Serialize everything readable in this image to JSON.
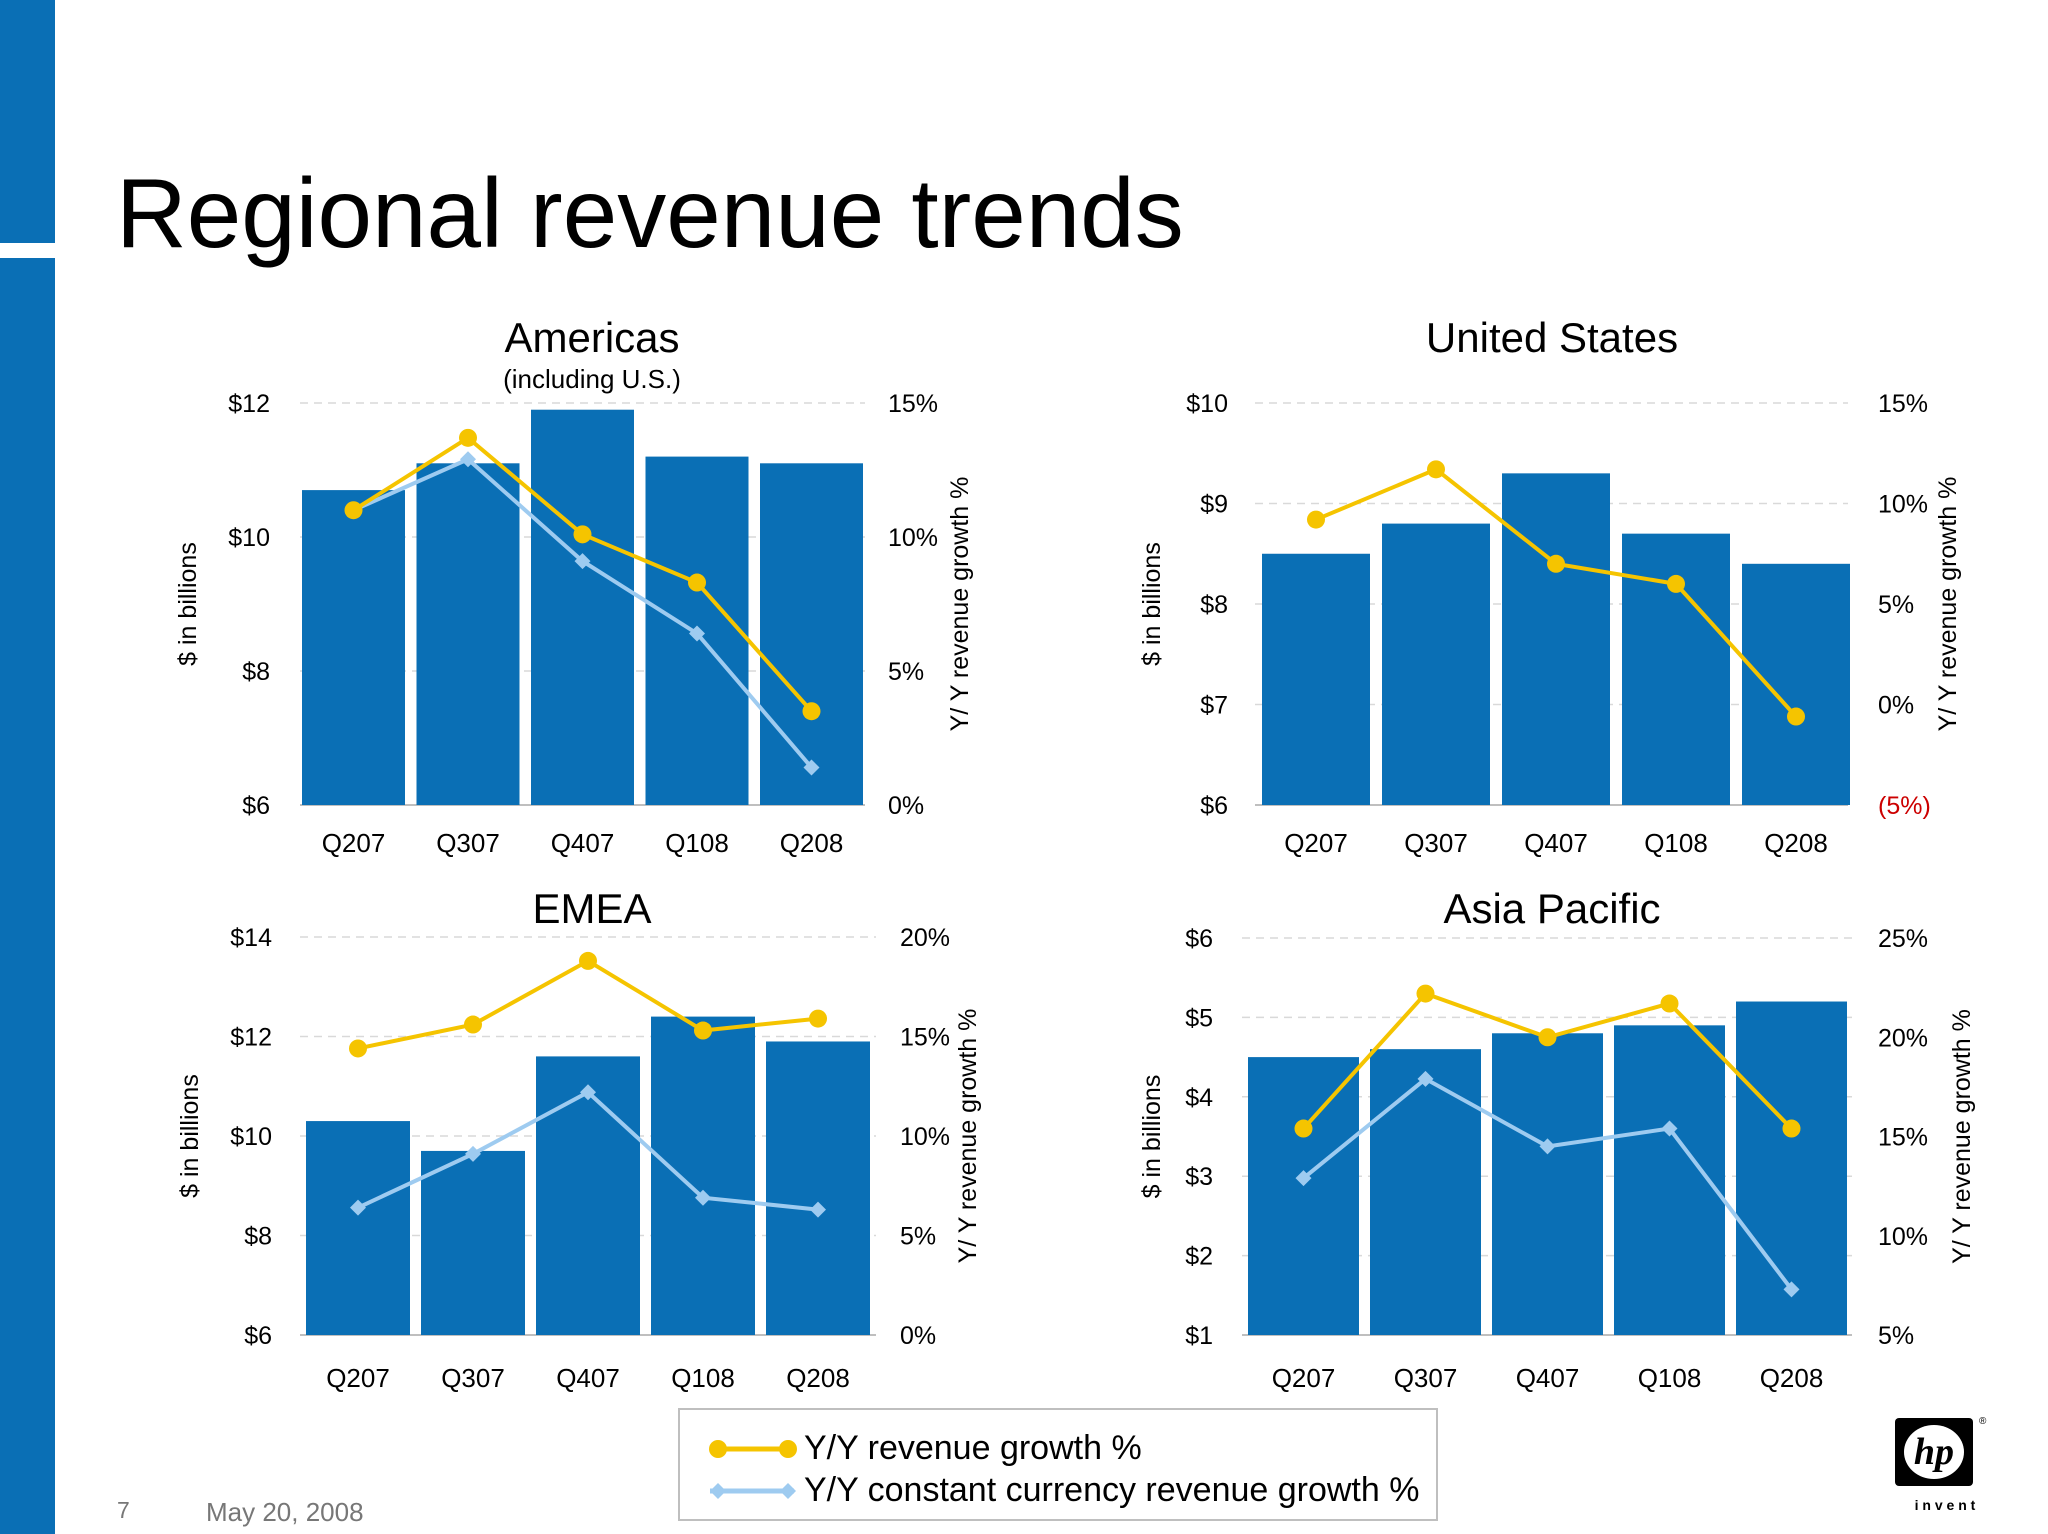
{
  "page": {
    "title": "Regional revenue trends",
    "page_number": "7",
    "date": "May 20, 2008"
  },
  "logo": {
    "mark_text": "hp",
    "tagline": "i n v e n t"
  },
  "legend": {
    "items": [
      {
        "label": "Y/Y revenue growth %",
        "color": "#f5c400",
        "marker": "circle"
      },
      {
        "label": "Y/Y constant currency revenue growth %",
        "color": "#9ecbf0",
        "marker": "diamond"
      }
    ]
  },
  "colors": {
    "bar": "#0a6fb5",
    "growth": "#f5c400",
    "constant_currency": "#9ecbf0",
    "accent": "#0a6fb5",
    "negative_label": "#cc0000"
  },
  "chart_data": [
    {
      "type": "bar",
      "title": "Americas",
      "subtitle": "(including U.S.)",
      "categories": [
        "Q207",
        "Q307",
        "Q407",
        "Q108",
        "Q208"
      ],
      "ylabel": "$ in billions",
      "y2label": "Y/ Y revenue growth %",
      "ylim": [
        6,
        12
      ],
      "y_ticks": [
        6,
        8,
        10,
        12
      ],
      "y_tick_labels": [
        "$6",
        "$8",
        "$10",
        "$12"
      ],
      "y2lim": [
        0,
        15
      ],
      "y2_ticks": [
        0,
        5,
        10,
        15
      ],
      "y2_tick_labels": [
        "0%",
        "5%",
        "10%",
        "15%"
      ],
      "bars": [
        10.7,
        11.1,
        11.9,
        11.2,
        11.1
      ],
      "series": [
        {
          "name": "Y/Y revenue growth %",
          "axis": "y2",
          "values": [
            11.0,
            13.7,
            10.1,
            8.3,
            3.5
          ]
        },
        {
          "name": "Y/Y constant currency revenue growth %",
          "axis": "y2",
          "values": [
            11.0,
            12.9,
            9.1,
            6.4,
            1.4
          ]
        }
      ]
    },
    {
      "type": "bar",
      "title": "United States",
      "subtitle": "",
      "categories": [
        "Q207",
        "Q307",
        "Q407",
        "Q108",
        "Q208"
      ],
      "ylabel": "$ in billions",
      "y2label": "Y/ Y revenue growth %",
      "ylim": [
        6,
        10
      ],
      "y_ticks": [
        6,
        7,
        8,
        9,
        10
      ],
      "y_tick_labels": [
        "$6",
        "$7",
        "$8",
        "$9",
        "$10"
      ],
      "y2lim": [
        -5,
        15
      ],
      "y2_ticks": [
        -5,
        0,
        5,
        10,
        15
      ],
      "y2_tick_labels": [
        "(5%)",
        "0%",
        "5%",
        "10%",
        "15%"
      ],
      "bars": [
        8.5,
        8.8,
        9.3,
        8.7,
        8.4
      ],
      "series": [
        {
          "name": "Y/Y revenue growth %",
          "axis": "y2",
          "values": [
            9.2,
            11.7,
            7.0,
            6.0,
            -0.6
          ]
        }
      ]
    },
    {
      "type": "bar",
      "title": "EMEA",
      "subtitle": "",
      "categories": [
        "Q207",
        "Q307",
        "Q407",
        "Q108",
        "Q208"
      ],
      "ylabel": "$ in billions",
      "y2label": "Y/ Y revenue growth %",
      "ylim": [
        6,
        14
      ],
      "y_ticks": [
        6,
        8,
        10,
        12,
        14
      ],
      "y_tick_labels": [
        "$6",
        "$8",
        "$10",
        "$12",
        "$14"
      ],
      "y2lim": [
        0,
        20
      ],
      "y2_ticks": [
        0,
        5,
        10,
        15,
        20
      ],
      "y2_tick_labels": [
        "0%",
        "5%",
        "10%",
        "15%",
        "20%"
      ],
      "bars": [
        10.3,
        9.7,
        11.6,
        12.4,
        11.9
      ],
      "series": [
        {
          "name": "Y/Y revenue growth %",
          "axis": "y2",
          "values": [
            14.4,
            15.6,
            18.8,
            15.3,
            15.9
          ]
        },
        {
          "name": "Y/Y constant currency revenue growth %",
          "axis": "y2",
          "values": [
            6.4,
            9.1,
            12.2,
            6.9,
            6.3
          ]
        }
      ]
    },
    {
      "type": "bar",
      "title": "Asia Pacific",
      "subtitle": "",
      "categories": [
        "Q207",
        "Q307",
        "Q407",
        "Q108",
        "Q208"
      ],
      "ylabel": "$ in billions",
      "y2label": "Y/ Y revenue growth %",
      "ylim": [
        1,
        6
      ],
      "y_ticks": [
        1,
        2,
        3,
        4,
        5,
        6
      ],
      "y_tick_labels": [
        "$1",
        "$2",
        "$3",
        "$4",
        "$5",
        "$6"
      ],
      "y2lim": [
        5,
        25
      ],
      "y2_ticks": [
        5,
        10,
        15,
        20,
        25
      ],
      "y2_tick_labels": [
        "5%",
        "10%",
        "15%",
        "20%",
        "25%"
      ],
      "bars": [
        4.5,
        4.6,
        4.8,
        4.9,
        5.2
      ],
      "series": [
        {
          "name": "Y/Y revenue growth %",
          "axis": "y2",
          "values": [
            15.4,
            22.2,
            20.0,
            21.7,
            15.4
          ]
        },
        {
          "name": "Y/Y constant currency revenue growth %",
          "axis": "y2",
          "values": [
            12.9,
            17.9,
            14.5,
            15.4,
            7.3
          ]
        }
      ]
    }
  ]
}
